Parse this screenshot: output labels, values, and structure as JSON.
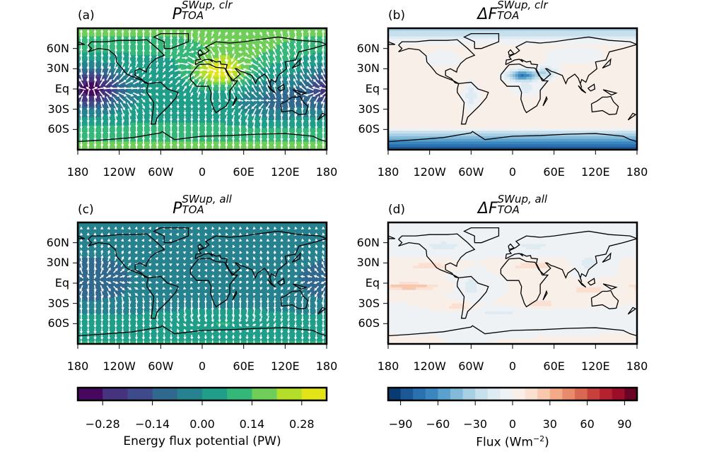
{
  "panels": [
    {
      "label": "(a)",
      "title_base": "P",
      "title_sup": "SWup, clr",
      "title_sub": "TOA",
      "colormap": "viridis",
      "arrows": true
    },
    {
      "label": "(b)",
      "title_base": "ΔF",
      "title_sup": "SWup, clr",
      "title_sub": "TOA",
      "colormap": "RdBu_r",
      "arrows": false
    },
    {
      "label": "(c)",
      "title_base": "P",
      "title_sup": "SWup, all",
      "title_sub": "TOA",
      "colormap": "viridis",
      "arrows": true
    },
    {
      "label": "(d)",
      "title_base": "ΔF",
      "title_sup": "SWup, all",
      "title_sub": "TOA",
      "colormap": "RdBu_r",
      "arrows": false
    }
  ],
  "lon_ticks": [
    "180",
    "120W",
    "60W",
    "0",
    "60E",
    "120E",
    "180"
  ],
  "lat_ticks": [
    "60N",
    "30N",
    "Eq",
    "30S",
    "60S"
  ],
  "colorbars": [
    {
      "label": "Energy flux potential (PW)",
      "range": [
        -0.35,
        0.35
      ],
      "ticks": [
        "−0.28",
        "−0.14",
        "0.00",
        "0.14",
        "0.28"
      ],
      "tick_values": [
        -0.28,
        -0.14,
        0,
        0.14,
        0.28
      ],
      "colors": [
        "#46085c",
        "#46337e",
        "#3e4a89",
        "#31688e",
        "#26828e",
        "#1f9e89",
        "#35b779",
        "#6ece58",
        "#b5de2b",
        "#e3e418"
      ]
    },
    {
      "label_main": "Flux (Wm",
      "label_sup": "−2",
      "label_end": ")",
      "range": [
        -100,
        100
      ],
      "ticks": [
        "−90",
        "−60",
        "−30",
        "0",
        "30",
        "60",
        "90"
      ],
      "tick_values": [
        -90,
        -60,
        -30,
        0,
        30,
        60,
        90
      ],
      "colors": [
        "#0a3b70",
        "#1c5796",
        "#2a71b2",
        "#3a87bf",
        "#5aa1cd",
        "#82bad9",
        "#a9cfe5",
        "#c7e0ed",
        "#deebf2",
        "#eef2f5",
        "#f9efe9",
        "#fbe0d1",
        "#f8c8ae",
        "#f4aa88",
        "#e98a6c",
        "#d96853",
        "#c8403c",
        "#b5212f",
        "#9a0e27",
        "#6b0322"
      ]
    }
  ]
}
